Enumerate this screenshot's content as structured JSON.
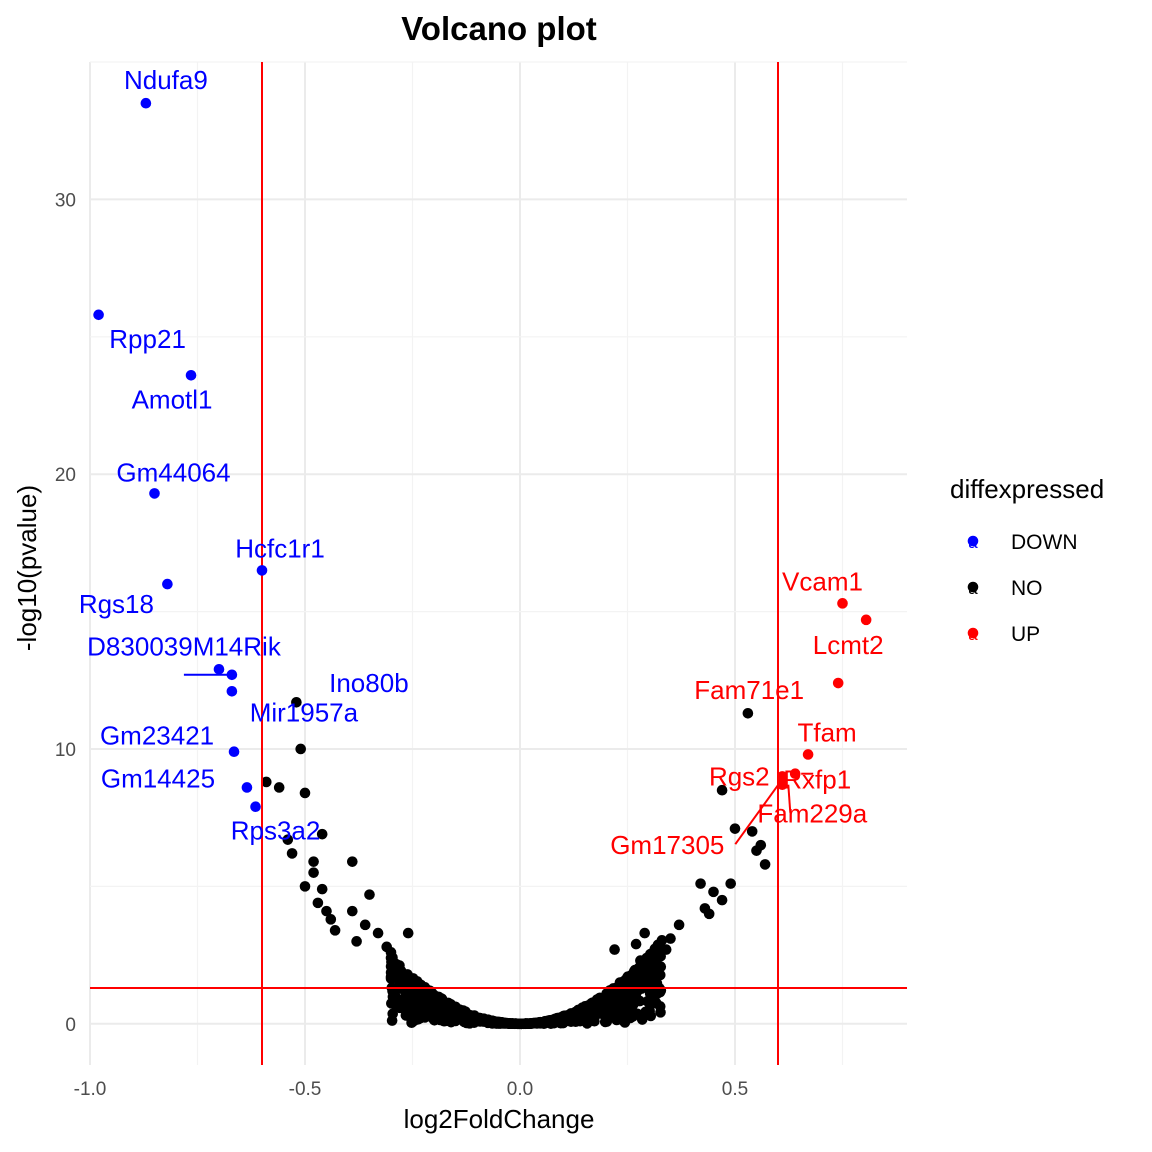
{
  "chart_data": {
    "type": "scatter",
    "title": "Volcano plot",
    "xlabel": "log2FoldChange",
    "ylabel": "-log10(pvalue)",
    "xlim": [
      -1.0,
      0.9
    ],
    "ylim": [
      -1.5,
      35.0
    ],
    "x_ticks": [
      -1.0,
      -0.5,
      0.0,
      0.5
    ],
    "x_tick_labels": [
      "-1.0",
      "-0.5",
      "0.0",
      "0.5"
    ],
    "y_ticks": [
      0,
      10,
      20,
      30
    ],
    "y_tick_labels": [
      "0",
      "10",
      "20",
      "30"
    ],
    "grid": true,
    "reference_lines": {
      "vertical": [
        -0.6,
        0.6
      ],
      "horizontal": [
        1.3
      ],
      "color": "#ff0000"
    },
    "legend": {
      "title": "diffexpressed",
      "placement": "right",
      "key_glyph": "a",
      "entries": [
        {
          "label": "DOWN",
          "color": "#0000ff"
        },
        {
          "label": "NO",
          "color": "#000000"
        },
        {
          "label": "UP",
          "color": "#ff0000"
        }
      ]
    },
    "colors": {
      "DOWN": "#0000ff",
      "NO": "#000000",
      "UP": "#ff0000"
    },
    "series": [
      {
        "name": "DOWN",
        "points": [
          {
            "x": -0.87,
            "y": 33.5,
            "label": "Ndufa9"
          },
          {
            "x": -0.98,
            "y": 25.8,
            "label": "Rpp21"
          },
          {
            "x": -0.765,
            "y": 23.6,
            "label": "Amotl1"
          },
          {
            "x": -0.85,
            "y": 19.3,
            "label": "Gm44064"
          },
          {
            "x": -0.6,
            "y": 16.5,
            "label": "Hcfc1r1"
          },
          {
            "x": -0.82,
            "y": 16.0,
            "label": "Rgs18"
          },
          {
            "x": -0.7,
            "y": 12.9,
            "label": "D830039M14Rik"
          },
          {
            "x": -0.67,
            "y": 12.7,
            "label": "Ino80b"
          },
          {
            "x": -0.67,
            "y": 12.1,
            "label": "Mir1957a"
          },
          {
            "x": -0.665,
            "y": 9.9,
            "label": "Gm23421"
          },
          {
            "x": -0.635,
            "y": 8.6,
            "label": "Gm14425"
          },
          {
            "x": -0.615,
            "y": 7.9,
            "label": "Rps3a2"
          }
        ]
      },
      {
        "name": "UP",
        "points": [
          {
            "x": 0.75,
            "y": 15.3,
            "label": "Vcam1"
          },
          {
            "x": 0.805,
            "y": 14.7,
            "label": "Lcmt2"
          },
          {
            "x": 0.74,
            "y": 12.4,
            "label": "Fam71e1"
          },
          {
            "x": 0.67,
            "y": 9.8,
            "label": "Tfam"
          },
          {
            "x": 0.61,
            "y": 9.0,
            "label": "Rgs2"
          },
          {
            "x": 0.64,
            "y": 9.1,
            "label": "Rxfp1"
          },
          {
            "x": 0.61,
            "y": 8.7,
            "label": "Fam229a"
          },
          {
            "x": 0.61,
            "y": 8.9,
            "label": "Gm17305"
          }
        ]
      },
      {
        "name": "NO",
        "points": [
          {
            "x": -0.52,
            "y": 11.7
          },
          {
            "x": -0.51,
            "y": 10.0
          },
          {
            "x": -0.59,
            "y": 8.8
          },
          {
            "x": -0.56,
            "y": 8.6
          },
          {
            "x": -0.5,
            "y": 8.4
          },
          {
            "x": -0.46,
            "y": 6.9
          },
          {
            "x": -0.54,
            "y": 6.7
          },
          {
            "x": -0.53,
            "y": 6.2
          },
          {
            "x": -0.48,
            "y": 5.9
          },
          {
            "x": -0.39,
            "y": 5.9
          },
          {
            "x": -0.48,
            "y": 5.5
          },
          {
            "x": -0.5,
            "y": 5.0
          },
          {
            "x": -0.46,
            "y": 4.9
          },
          {
            "x": -0.35,
            "y": 4.7
          },
          {
            "x": -0.47,
            "y": 4.4
          },
          {
            "x": -0.45,
            "y": 4.1
          },
          {
            "x": -0.39,
            "y": 4.1
          },
          {
            "x": -0.44,
            "y": 3.8
          },
          {
            "x": -0.36,
            "y": 3.6
          },
          {
            "x": -0.43,
            "y": 3.4
          },
          {
            "x": -0.33,
            "y": 3.3
          },
          {
            "x": -0.26,
            "y": 3.3
          },
          {
            "x": -0.38,
            "y": 3.0
          },
          {
            "x": -0.31,
            "y": 2.8
          },
          {
            "x": -0.3,
            "y": 2.6
          },
          {
            "x": 0.53,
            "y": 11.3
          },
          {
            "x": 0.47,
            "y": 8.5
          },
          {
            "x": 0.5,
            "y": 7.1
          },
          {
            "x": 0.54,
            "y": 7.0
          },
          {
            "x": 0.56,
            "y": 6.5
          },
          {
            "x": 0.55,
            "y": 6.3
          },
          {
            "x": 0.57,
            "y": 5.8
          },
          {
            "x": 0.49,
            "y": 5.1
          },
          {
            "x": 0.42,
            "y": 5.1
          },
          {
            "x": 0.45,
            "y": 4.8
          },
          {
            "x": 0.47,
            "y": 4.5
          },
          {
            "x": 0.43,
            "y": 4.2
          },
          {
            "x": 0.44,
            "y": 4.0
          },
          {
            "x": 0.37,
            "y": 3.6
          },
          {
            "x": 0.29,
            "y": 3.3
          },
          {
            "x": 0.35,
            "y": 3.1
          },
          {
            "x": 0.27,
            "y": 2.9
          },
          {
            "x": 0.31,
            "y": 2.6
          },
          {
            "x": 0.34,
            "y": 2.7
          },
          {
            "x": 0.22,
            "y": 2.7
          },
          {
            "x": 0.28,
            "y": 2.3
          }
        ],
        "bulk_envelope": {
          "x_range": [
            -0.3,
            0.33
          ],
          "note": "dense cloud following y ≈ 28·x²"
        }
      }
    ]
  }
}
